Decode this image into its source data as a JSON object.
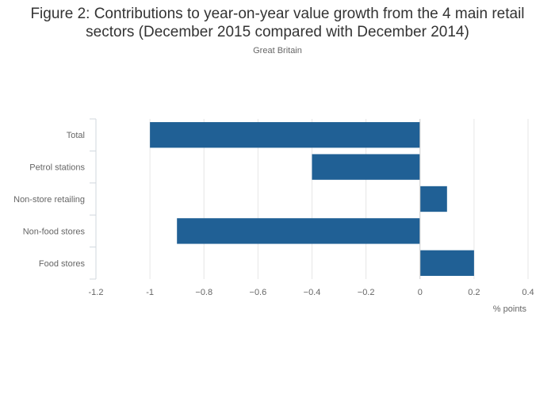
{
  "title_line1": "Figure 2: Contributions to year-on-year value growth from the 4 main retail",
  "title_line2": "sectors (December 2015 compared with December 2014)",
  "subtitle": "Great Britain",
  "chart_data": {
    "type": "bar",
    "orientation": "horizontal",
    "title": "Figure 2: Contributions to year-on-year value growth from the 4 main retail sectors (December 2015 compared with December 2014)",
    "subtitle": "Great Britain",
    "xlabel": "% points",
    "ylabel": "",
    "categories": [
      "Total",
      "Petrol stations",
      "Non-store retailing",
      "Non-food stores",
      "Food stores"
    ],
    "values": [
      -1.0,
      -0.4,
      0.1,
      -0.9,
      0.2
    ],
    "xlim": [
      -1.2,
      0.4
    ],
    "xticks": [
      -1.2,
      -1,
      -0.8,
      -0.6,
      -0.4,
      -0.2,
      0,
      0.2,
      0.4
    ],
    "xtick_labels": [
      "-1.2",
      "-1",
      "−0.8",
      "−0.6",
      "−0.4",
      "−0.2",
      "0",
      "0.2",
      "0.4"
    ],
    "grid": true,
    "bar_color": "#206095",
    "grid_color": "#e6e6e6",
    "zero_line_color": "#cccccc"
  }
}
